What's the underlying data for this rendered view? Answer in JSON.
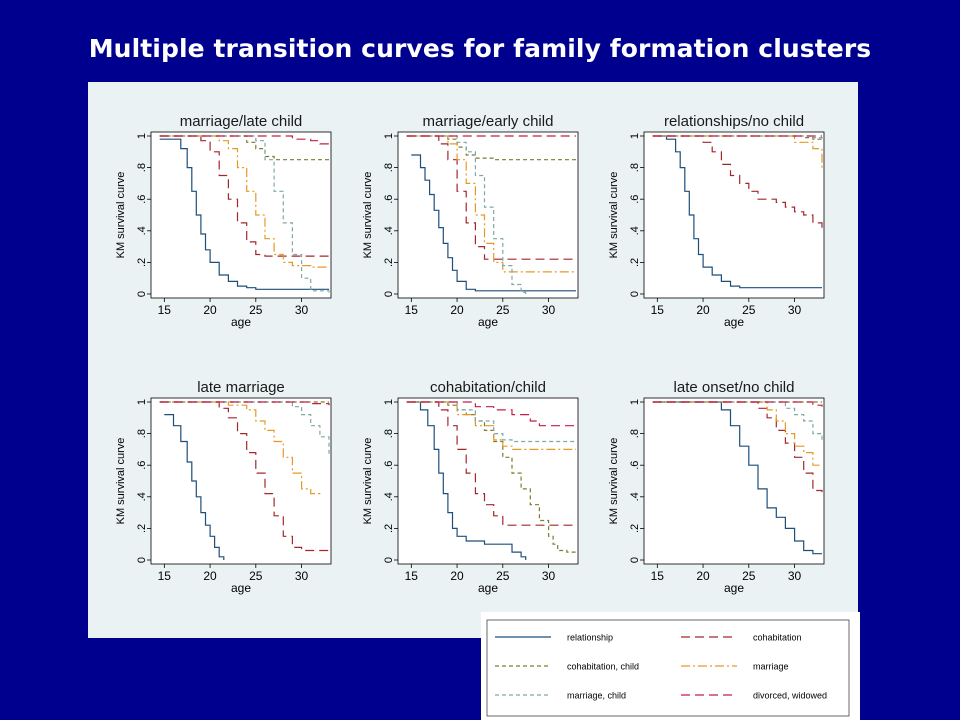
{
  "slide": {
    "title": "Multiple transition curves for family formation clusters"
  },
  "colors": {
    "slide_background": "#00008f",
    "panel_background": "#eaf2f3",
    "relationship": "#1f4e79",
    "cohabitation": "#a3272d",
    "cohabitation_child": "#7d7d2e",
    "marriage": "#e69a24",
    "marriage_child": "#7fa8a8",
    "divorced_widowed": "#c41e47"
  },
  "legend": {
    "items": [
      {
        "key": "relationship",
        "label": "relationship",
        "dash": "solid"
      },
      {
        "key": "cohabitation",
        "label": "cohabitation",
        "dash": "long-dash"
      },
      {
        "key": "cohabitation_child",
        "label": "cohabitation, child",
        "dash": "short-dash"
      },
      {
        "key": "marriage",
        "label": "marriage",
        "dash": "long-dash-dot"
      },
      {
        "key": "marriage_child",
        "label": "marriage, child",
        "dash": "short-dash"
      },
      {
        "key": "divorced_widowed",
        "label": "divorced, widowed",
        "dash": "long-dash"
      }
    ]
  },
  "chart_data": [
    {
      "type": "line",
      "title": "marriage/late child",
      "xlabel": "age",
      "ylabel": "KM survival curve",
      "xlim": [
        15,
        33
      ],
      "ylim": [
        0,
        1
      ],
      "xticks": [
        "15",
        "20",
        "25",
        "30"
      ],
      "yticks": [
        "0",
        ".2",
        ".4",
        ".6",
        ".8",
        "1"
      ],
      "series": [
        {
          "key": "relationship",
          "x": [
            14.5,
            16,
            16.8,
            17.5,
            18,
            18.5,
            19,
            19.5,
            20,
            21,
            22,
            23,
            24,
            25,
            33
          ],
          "y": [
            0.98,
            0.98,
            0.92,
            0.8,
            0.65,
            0.5,
            0.38,
            0.28,
            0.2,
            0.12,
            0.08,
            0.05,
            0.04,
            0.03,
            0.03
          ]
        },
        {
          "key": "cohabitation",
          "x": [
            14.5,
            18,
            19,
            20,
            21,
            22,
            23,
            24,
            25,
            26,
            33
          ],
          "y": [
            1,
            1,
            0.97,
            0.9,
            0.75,
            0.6,
            0.45,
            0.33,
            0.25,
            0.24,
            0.24
          ]
        },
        {
          "key": "cohabitation_child",
          "x": [
            14.5,
            22,
            24,
            25,
            26,
            27,
            33
          ],
          "y": [
            1,
            1,
            0.96,
            0.92,
            0.87,
            0.85,
            0.85
          ]
        },
        {
          "key": "marriage",
          "x": [
            14.5,
            19,
            21,
            22,
            23,
            24,
            25,
            26,
            27,
            28,
            29,
            31,
            33
          ],
          "y": [
            1,
            1,
            0.97,
            0.92,
            0.8,
            0.65,
            0.5,
            0.35,
            0.25,
            0.2,
            0.18,
            0.17,
            0.17
          ]
        },
        {
          "key": "marriage_child",
          "x": [
            14.5,
            22,
            25,
            26,
            27,
            28,
            29,
            30,
            31,
            33
          ],
          "y": [
            1,
            1,
            0.97,
            0.85,
            0.65,
            0.45,
            0.25,
            0.1,
            0.02,
            0.01
          ]
        },
        {
          "key": "divorced_widowed",
          "x": [
            14.5,
            26,
            29,
            31,
            32,
            33
          ],
          "y": [
            1,
            1,
            0.98,
            0.97,
            0.95,
            0.95
          ]
        }
      ]
    },
    {
      "type": "line",
      "title": "marriage/early child",
      "xlabel": "age",
      "ylabel": "KM survival curve",
      "xlim": [
        15,
        33
      ],
      "ylim": [
        0,
        1
      ],
      "xticks": [
        "15",
        "20",
        "25",
        "30"
      ],
      "yticks": [
        "0",
        ".2",
        ".4",
        ".6",
        ".8",
        "1"
      ],
      "series": [
        {
          "key": "relationship",
          "x": [
            15,
            16,
            16.5,
            17,
            17.5,
            18,
            18.5,
            19,
            19.5,
            20,
            21,
            22,
            24,
            33
          ],
          "y": [
            0.88,
            0.8,
            0.72,
            0.63,
            0.53,
            0.42,
            0.32,
            0.23,
            0.15,
            0.08,
            0.03,
            0.02,
            0.02,
            0.02
          ]
        },
        {
          "key": "cohabitation",
          "x": [
            14.5,
            17,
            18,
            19,
            20,
            21,
            22,
            23,
            33
          ],
          "y": [
            1,
            1,
            0.95,
            0.85,
            0.65,
            0.45,
            0.3,
            0.22,
            0.22
          ]
        },
        {
          "key": "cohabitation_child",
          "x": [
            14.5,
            18,
            19,
            20,
            21,
            22,
            24,
            33
          ],
          "y": [
            1,
            1,
            0.98,
            0.93,
            0.88,
            0.86,
            0.85,
            0.85
          ]
        },
        {
          "key": "marriage",
          "x": [
            14.5,
            18,
            19,
            20,
            21,
            22,
            23,
            24,
            25,
            33
          ],
          "y": [
            1,
            1,
            0.95,
            0.85,
            0.7,
            0.5,
            0.32,
            0.2,
            0.14,
            0.14
          ]
        },
        {
          "key": "marriage_child",
          "x": [
            14.5,
            19,
            20,
            21,
            22,
            23,
            24,
            25,
            26,
            27,
            27.5
          ],
          "y": [
            1,
            1,
            0.96,
            0.9,
            0.75,
            0.55,
            0.35,
            0.18,
            0.06,
            0.01,
            0
          ]
        },
        {
          "key": "divorced_widowed",
          "x": [
            14.5,
            33
          ],
          "y": [
            1,
            1
          ]
        }
      ]
    },
    {
      "type": "line",
      "title": "relationships/no child",
      "xlabel": "age",
      "ylabel": "KM survival curve",
      "xlim": [
        15,
        33
      ],
      "ylim": [
        0,
        1
      ],
      "xticks": [
        "15",
        "20",
        "25",
        "30"
      ],
      "yticks": [
        "0",
        ".2",
        ".4",
        ".6",
        ".8",
        "1"
      ],
      "series": [
        {
          "key": "relationship",
          "x": [
            15,
            16,
            17,
            17.5,
            18,
            18.5,
            19,
            19.5,
            20,
            21,
            22,
            23,
            24,
            33
          ],
          "y": [
            1,
            0.98,
            0.9,
            0.8,
            0.65,
            0.5,
            0.35,
            0.25,
            0.17,
            0.12,
            0.08,
            0.05,
            0.04,
            0.04
          ]
        },
        {
          "key": "cohabitation",
          "x": [
            14.5,
            19,
            20,
            21,
            22,
            23,
            24,
            25,
            26,
            28,
            29,
            30,
            31,
            32,
            33
          ],
          "y": [
            1,
            1,
            0.96,
            0.9,
            0.82,
            0.75,
            0.7,
            0.65,
            0.6,
            0.58,
            0.55,
            0.52,
            0.5,
            0.45,
            0.4
          ]
        },
        {
          "key": "cohabitation_child",
          "x": [
            14.5,
            30,
            31,
            32,
            33
          ],
          "y": [
            1,
            1,
            0.99,
            0.98,
            0.98
          ]
        },
        {
          "key": "marriage",
          "x": [
            14.5,
            28,
            30,
            32,
            33
          ],
          "y": [
            1,
            1,
            0.96,
            0.92,
            0.8
          ]
        },
        {
          "key": "marriage_child",
          "x": [
            14.5,
            31,
            32,
            33
          ],
          "y": [
            1,
            1,
            0.99,
            0.98
          ]
        },
        {
          "key": "divorced_widowed",
          "x": [
            14.5,
            33
          ],
          "y": [
            1,
            1
          ]
        }
      ]
    },
    {
      "type": "line",
      "title": "late marriage",
      "xlabel": "age",
      "ylabel": "KM survival curve",
      "xlim": [
        15,
        33
      ],
      "ylim": [
        0,
        1
      ],
      "xticks": [
        "15",
        "20",
        "25",
        "30"
      ],
      "yticks": [
        "0",
        ".2",
        ".4",
        ".6",
        ".8",
        "1"
      ],
      "series": [
        {
          "key": "relationship",
          "x": [
            15,
            16,
            16.8,
            17.5,
            18,
            18.5,
            19,
            19.5,
            20,
            20.5,
            21,
            21.5
          ],
          "y": [
            0.92,
            0.85,
            0.75,
            0.62,
            0.5,
            0.4,
            0.3,
            0.22,
            0.15,
            0.08,
            0.02,
            0
          ]
        },
        {
          "key": "cohabitation",
          "x": [
            14.5,
            20,
            21,
            22,
            23,
            24,
            25,
            26,
            27,
            28,
            29,
            30,
            33
          ],
          "y": [
            1,
            1,
            0.96,
            0.9,
            0.8,
            0.68,
            0.55,
            0.42,
            0.28,
            0.15,
            0.08,
            0.06,
            0.06
          ]
        },
        {
          "key": "cohabitation_child",
          "x": [
            14.5,
            33
          ],
          "y": [
            1,
            1
          ]
        },
        {
          "key": "marriage",
          "x": [
            14.5,
            21,
            22,
            24,
            25,
            26,
            27,
            28,
            29,
            30,
            31,
            32
          ],
          "y": [
            1,
            1,
            0.98,
            0.95,
            0.88,
            0.82,
            0.75,
            0.65,
            0.55,
            0.45,
            0.42,
            0.4
          ]
        },
        {
          "key": "marriage_child",
          "x": [
            14.5,
            27,
            29,
            30,
            31,
            32,
            33
          ],
          "y": [
            1,
            1,
            0.97,
            0.92,
            0.85,
            0.78,
            0.66
          ]
        },
        {
          "key": "divorced_widowed",
          "x": [
            14.5,
            28,
            31,
            33
          ],
          "y": [
            1,
            1,
            0.99,
            0.98
          ]
        }
      ]
    },
    {
      "type": "line",
      "title": "cohabitation/child",
      "xlabel": "age",
      "ylabel": "KM survival curve",
      "xlim": [
        15,
        33
      ],
      "ylim": [
        0,
        1
      ],
      "xticks": [
        "15",
        "20",
        "25",
        "30"
      ],
      "yticks": [
        "0",
        ".2",
        ".4",
        ".6",
        ".8",
        "1"
      ],
      "series": [
        {
          "key": "relationship",
          "x": [
            15,
            16,
            16.8,
            17.5,
            18,
            18.5,
            19,
            19.5,
            20,
            21,
            23,
            26,
            27,
            27.5
          ],
          "y": [
            1,
            0.95,
            0.85,
            0.7,
            0.55,
            0.42,
            0.3,
            0.2,
            0.15,
            0.12,
            0.1,
            0.05,
            0.02,
            0
          ]
        },
        {
          "key": "cohabitation",
          "x": [
            14.5,
            17,
            18,
            19,
            20,
            21,
            22,
            23,
            24,
            25,
            26,
            33
          ],
          "y": [
            1,
            1,
            0.95,
            0.85,
            0.7,
            0.55,
            0.42,
            0.35,
            0.28,
            0.22,
            0.22,
            0.22
          ]
        },
        {
          "key": "cohabitation_child",
          "x": [
            14.5,
            18,
            19,
            20,
            21,
            22,
            23,
            24,
            25,
            26,
            27,
            28,
            29,
            30,
            30.5,
            31,
            32,
            33
          ],
          "y": [
            1,
            1,
            0.98,
            0.95,
            0.92,
            0.88,
            0.82,
            0.75,
            0.65,
            0.55,
            0.45,
            0.35,
            0.25,
            0.15,
            0.1,
            0.06,
            0.05,
            0.05
          ]
        },
        {
          "key": "marriage",
          "x": [
            14.5,
            18,
            20,
            22,
            24,
            25,
            26,
            33
          ],
          "y": [
            1,
            1,
            0.92,
            0.85,
            0.76,
            0.72,
            0.7,
            0.7
          ]
        },
        {
          "key": "marriage_child",
          "x": [
            14.5,
            18,
            20,
            22,
            24,
            25,
            26,
            33
          ],
          "y": [
            1,
            1,
            0.95,
            0.88,
            0.8,
            0.76,
            0.75,
            0.75
          ]
        },
        {
          "key": "divorced_widowed",
          "x": [
            14.5,
            20,
            22,
            24,
            26,
            28,
            29,
            33
          ],
          "y": [
            1,
            1,
            0.97,
            0.95,
            0.92,
            0.88,
            0.85,
            0.85
          ]
        }
      ]
    },
    {
      "type": "line",
      "title": "late onset/no child",
      "xlabel": "age",
      "ylabel": "KM survival curve",
      "xlim": [
        15,
        33
      ],
      "ylim": [
        0,
        1
      ],
      "xticks": [
        "15",
        "20",
        "25",
        "30"
      ],
      "yticks": [
        "0",
        ".2",
        ".4",
        ".6",
        ".8",
        "1"
      ],
      "series": [
        {
          "key": "relationship",
          "x": [
            15,
            21,
            22,
            23,
            24,
            25,
            26,
            27,
            28,
            29,
            30,
            31,
            32,
            33
          ],
          "y": [
            1,
            1,
            0.95,
            0.85,
            0.72,
            0.6,
            0.45,
            0.33,
            0.27,
            0.2,
            0.12,
            0.06,
            0.04,
            0.04
          ]
        },
        {
          "key": "cohabitation",
          "x": [
            14.5,
            25,
            26,
            27,
            28,
            29,
            30,
            31,
            32,
            33
          ],
          "y": [
            1,
            1,
            0.96,
            0.9,
            0.82,
            0.74,
            0.65,
            0.55,
            0.44,
            0.43
          ]
        },
        {
          "key": "cohabitation_child",
          "x": [
            14.5,
            33
          ],
          "y": [
            1,
            1
          ]
        },
        {
          "key": "marriage",
          "x": [
            14.5,
            26,
            27,
            28,
            29,
            30,
            31,
            32,
            33
          ],
          "y": [
            1,
            1,
            0.95,
            0.88,
            0.8,
            0.72,
            0.68,
            0.6,
            0.6
          ]
        },
        {
          "key": "marriage_child",
          "x": [
            14.5,
            28,
            29,
            30,
            31,
            32,
            33
          ],
          "y": [
            1,
            1,
            0.96,
            0.92,
            0.88,
            0.8,
            0.75
          ]
        },
        {
          "key": "divorced_widowed",
          "x": [
            14.5,
            30,
            32,
            33
          ],
          "y": [
            1,
            1,
            0.98,
            0.97
          ]
        }
      ]
    }
  ]
}
